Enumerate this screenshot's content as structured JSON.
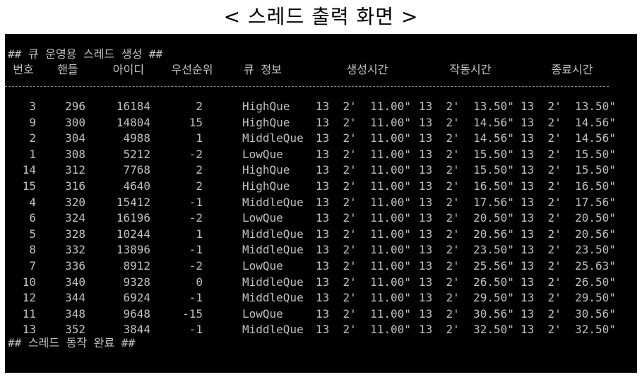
{
  "caption": "< 스레드 출력 화면 >",
  "console": {
    "header_line": "## 큐 운영용 스레드 생성 ##",
    "columns": [
      "번호",
      "핸들",
      "아이디",
      "우선순위",
      "큐 정보",
      "생성시간",
      "작동시간",
      "종료시간"
    ],
    "rows": [
      {
        "no": "3",
        "handle": "296",
        "id": "16184",
        "priority": "2",
        "queue": "HighQue",
        "created": "13  2'  11.00\"",
        "started": "13  2'  13.50\"",
        "ended": "13  2'  13.50\""
      },
      {
        "no": "9",
        "handle": "300",
        "id": "14804",
        "priority": "15",
        "queue": "HighQue",
        "created": "13  2'  11.00\"",
        "started": "13  2'  14.56\"",
        "ended": "13  2'  14.56\""
      },
      {
        "no": "2",
        "handle": "304",
        "id": "4988",
        "priority": "1",
        "queue": "MiddleQue",
        "created": "13  2'  11.00\"",
        "started": "13  2'  14.56\"",
        "ended": "13  2'  14.56\""
      },
      {
        "no": "1",
        "handle": "308",
        "id": "5212",
        "priority": "-2",
        "queue": "LowQue",
        "created": "13  2'  11.00\"",
        "started": "13  2'  15.50\"",
        "ended": "13  2'  15.50\""
      },
      {
        "no": "14",
        "handle": "312",
        "id": "7768",
        "priority": "2",
        "queue": "HighQue",
        "created": "13  2'  11.00\"",
        "started": "13  2'  15.50\"",
        "ended": "13  2'  15.50\""
      },
      {
        "no": "15",
        "handle": "316",
        "id": "4640",
        "priority": "2",
        "queue": "HighQue",
        "created": "13  2'  11.00\"",
        "started": "13  2'  16.50\"",
        "ended": "13  2'  16.50\""
      },
      {
        "no": "4",
        "handle": "320",
        "id": "15412",
        "priority": "-1",
        "queue": "MiddleQue",
        "created": "13  2'  11.00\"",
        "started": "13  2'  17.56\"",
        "ended": "13  2'  17.56\""
      },
      {
        "no": "6",
        "handle": "324",
        "id": "16196",
        "priority": "-2",
        "queue": "LowQue",
        "created": "13  2'  11.00\"",
        "started": "13  2'  20.50\"",
        "ended": "13  2'  20.50\""
      },
      {
        "no": "5",
        "handle": "328",
        "id": "10244",
        "priority": "1",
        "queue": "MiddleQue",
        "created": "13  2'  11.00\"",
        "started": "13  2'  20.56\"",
        "ended": "13  2'  20.56\""
      },
      {
        "no": "8",
        "handle": "332",
        "id": "13896",
        "priority": "-1",
        "queue": "MiddleQue",
        "created": "13  2'  11.00\"",
        "started": "13  2'  23.50\"",
        "ended": "13  2'  23.50\""
      },
      {
        "no": "7",
        "handle": "336",
        "id": "8912",
        "priority": "-2",
        "queue": "LowQue",
        "created": "13  2'  11.00\"",
        "started": "13  2'  25.56\"",
        "ended": "13  2'  25.63\""
      },
      {
        "no": "10",
        "handle": "340",
        "id": "9328",
        "priority": "0",
        "queue": "MiddleQue",
        "created": "13  2'  11.00\"",
        "started": "13  2'  26.50\"",
        "ended": "13  2'  26.50\""
      },
      {
        "no": "12",
        "handle": "344",
        "id": "6924",
        "priority": "-1",
        "queue": "MiddleQue",
        "created": "13  2'  11.00\"",
        "started": "13  2'  29.50\"",
        "ended": "13  2'  29.50\""
      },
      {
        "no": "11",
        "handle": "348",
        "id": "9648",
        "priority": "-15",
        "queue": "LowQue",
        "created": "13  2'  11.00\"",
        "started": "13  2'  30.56\"",
        "ended": "13  2'  30.56\""
      },
      {
        "no": "13",
        "handle": "352",
        "id": "3844",
        "priority": "-1",
        "queue": "MiddleQue",
        "created": "13  2'  11.00\"",
        "started": "13  2'  32.50\"",
        "ended": "13  2'  32.50\""
      }
    ],
    "footer_line": "## 스레드 동작 완료 ##"
  }
}
